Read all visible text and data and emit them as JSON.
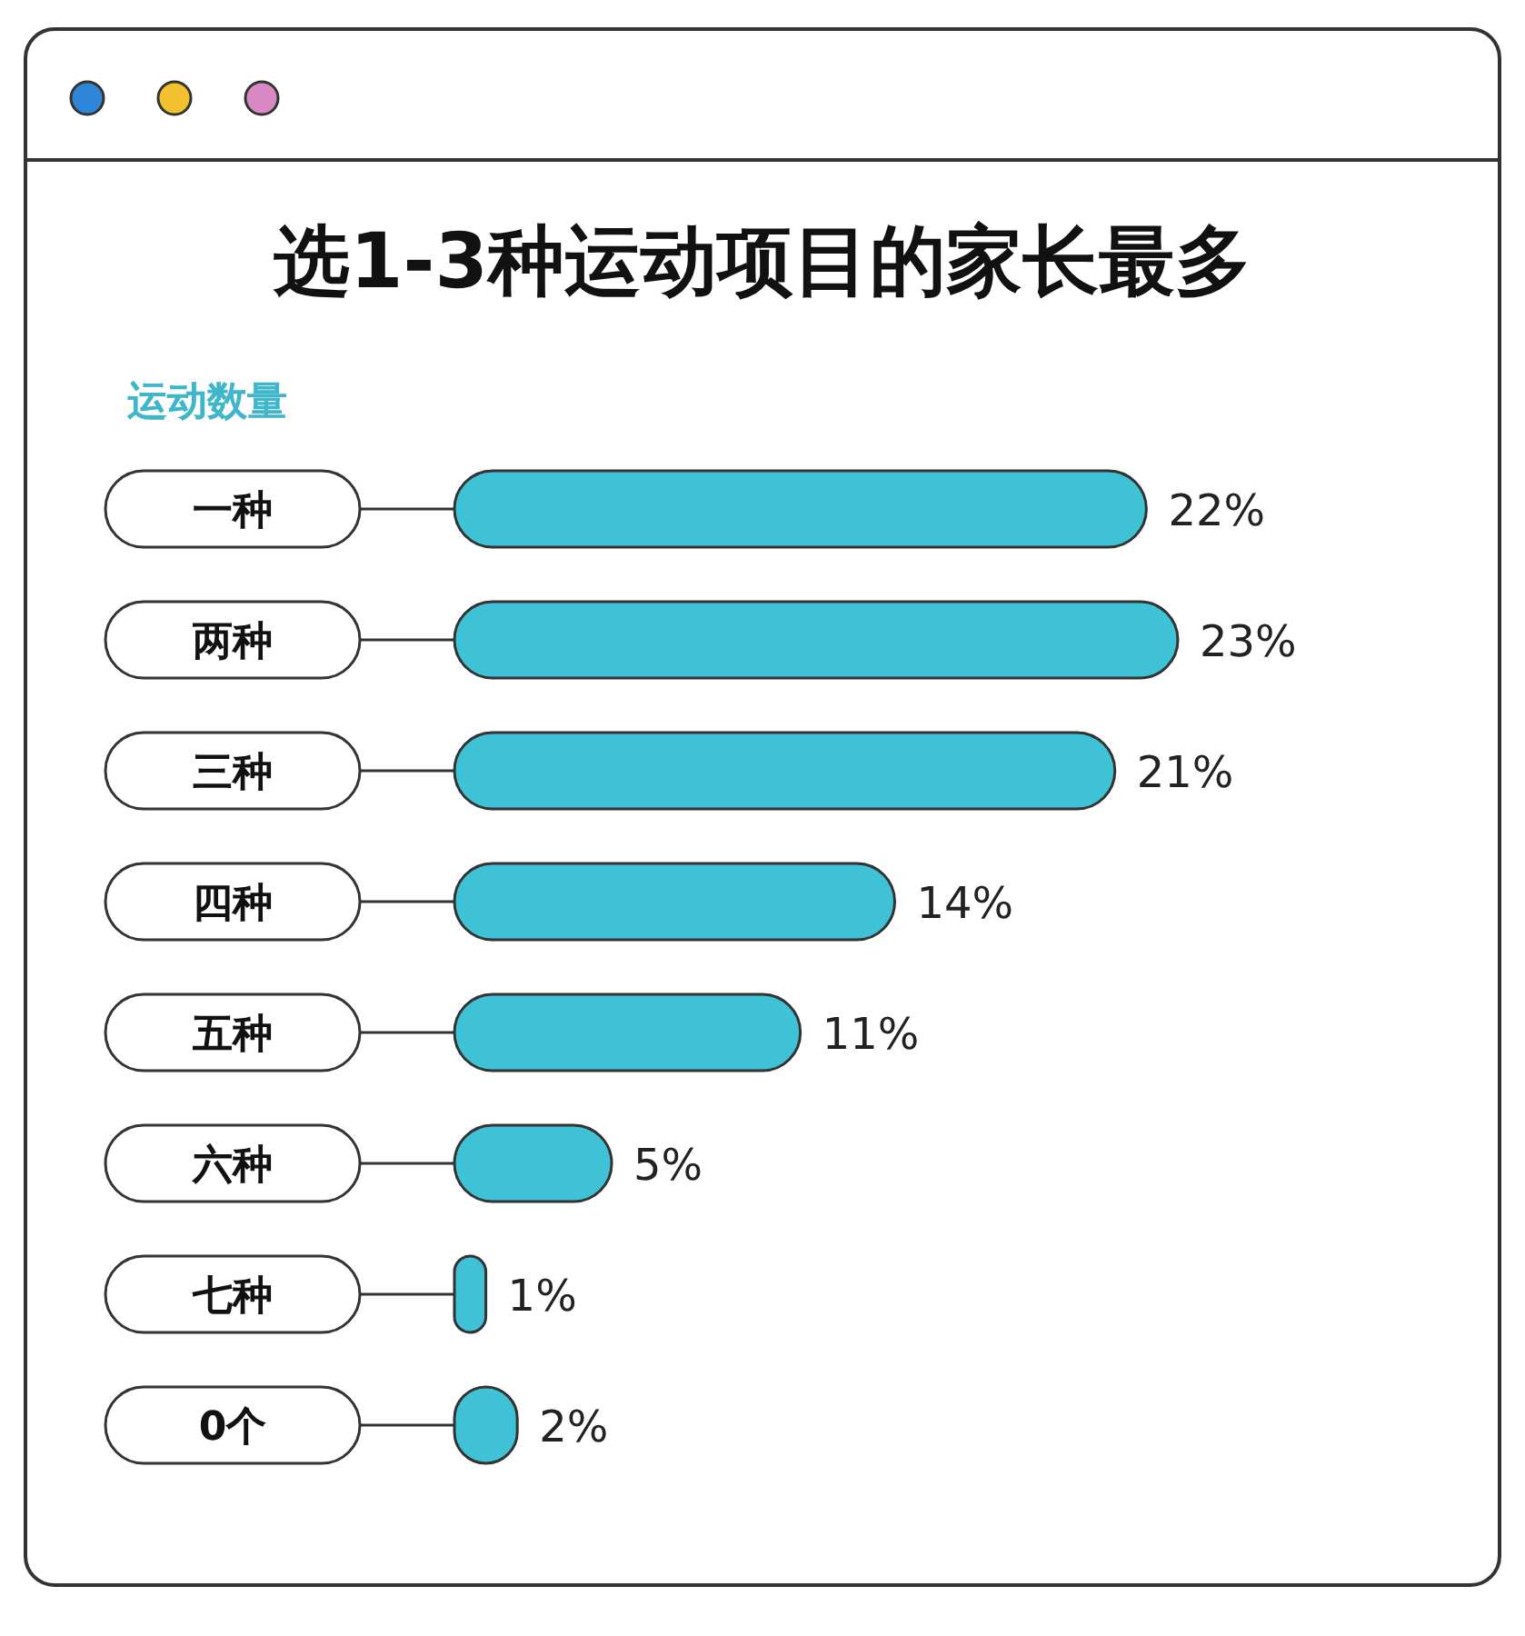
{
  "chart_data": {
    "type": "bar",
    "orientation": "horizontal",
    "title": "选1-3种运动项目的家长最多",
    "ylabel": "运动数量",
    "categories": [
      "一种",
      "两种",
      "三种",
      "四种",
      "五种",
      "六种",
      "七种",
      "0个"
    ],
    "values": [
      22,
      23,
      21,
      14,
      11,
      5,
      1,
      2
    ],
    "value_labels": [
      "22%",
      "23%",
      "21%",
      "14%",
      "11%",
      "5%",
      "1%",
      "2%"
    ],
    "color": "#3fc1d6"
  }
}
